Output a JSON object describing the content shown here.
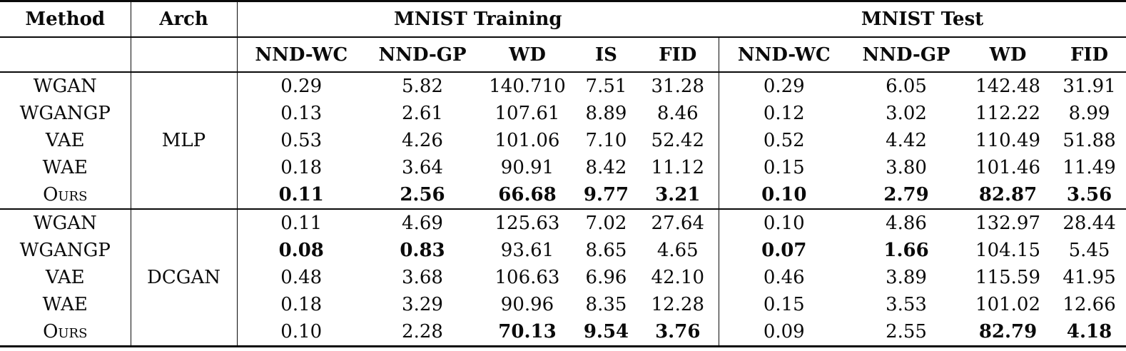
{
  "colors": {
    "background": "#ffffff",
    "text": "#0a0a0a",
    "rule": "#0a0a0a"
  },
  "table": {
    "header": {
      "method": "Method",
      "arch": "Arch",
      "training": "MNIST Training",
      "test": "MNIST Test"
    },
    "sub_training": [
      "NND-WC",
      "NND-GP",
      "WD",
      "IS",
      "FID"
    ],
    "sub_test": [
      "NND-WC",
      "NND-GP",
      "WD",
      "FID"
    ],
    "blocks": [
      {
        "arch": "MLP",
        "rows": [
          {
            "method": "WGAN",
            "sc": false,
            "values": [
              {
                "t": "0.29",
                "b": false
              },
              {
                "t": "5.82",
                "b": false
              },
              {
                "t": "140.710",
                "b": false
              },
              {
                "t": "7.51",
                "b": false
              },
              {
                "t": "31.28",
                "b": false
              },
              {
                "t": "0.29",
                "b": false
              },
              {
                "t": "6.05",
                "b": false
              },
              {
                "t": "142.48",
                "b": false
              },
              {
                "t": "31.91",
                "b": false
              }
            ]
          },
          {
            "method": "WGANGP",
            "sc": false,
            "values": [
              {
                "t": "0.13",
                "b": false
              },
              {
                "t": "2.61",
                "b": false
              },
              {
                "t": "107.61",
                "b": false
              },
              {
                "t": "8.89",
                "b": false
              },
              {
                "t": "8.46",
                "b": false
              },
              {
                "t": "0.12",
                "b": false
              },
              {
                "t": "3.02",
                "b": false
              },
              {
                "t": "112.22",
                "b": false
              },
              {
                "t": "8.99",
                "b": false
              }
            ]
          },
          {
            "method": "VAE",
            "sc": false,
            "values": [
              {
                "t": "0.53",
                "b": false
              },
              {
                "t": "4.26",
                "b": false
              },
              {
                "t": "101.06",
                "b": false
              },
              {
                "t": "7.10",
                "b": false
              },
              {
                "t": "52.42",
                "b": false
              },
              {
                "t": "0.52",
                "b": false
              },
              {
                "t": "4.42",
                "b": false
              },
              {
                "t": "110.49",
                "b": false
              },
              {
                "t": "51.88",
                "b": false
              }
            ]
          },
          {
            "method": "WAE",
            "sc": false,
            "values": [
              {
                "t": "0.18",
                "b": false
              },
              {
                "t": "3.64",
                "b": false
              },
              {
                "t": "90.91",
                "b": false
              },
              {
                "t": "8.42",
                "b": false
              },
              {
                "t": "11.12",
                "b": false
              },
              {
                "t": "0.15",
                "b": false
              },
              {
                "t": "3.80",
                "b": false
              },
              {
                "t": "101.46",
                "b": false
              },
              {
                "t": "11.49",
                "b": false
              }
            ]
          },
          {
            "method": "Ours",
            "sc": true,
            "values": [
              {
                "t": "0.11",
                "b": true
              },
              {
                "t": "2.56",
                "b": true
              },
              {
                "t": "66.68",
                "b": true
              },
              {
                "t": "9.77",
                "b": true
              },
              {
                "t": "3.21",
                "b": true
              },
              {
                "t": "0.10",
                "b": true
              },
              {
                "t": "2.79",
                "b": true
              },
              {
                "t": "82.87",
                "b": true
              },
              {
                "t": "3.56",
                "b": true
              }
            ]
          }
        ]
      },
      {
        "arch": "DCGAN",
        "rows": [
          {
            "method": "WGAN",
            "sc": false,
            "values": [
              {
                "t": "0.11",
                "b": false
              },
              {
                "t": "4.69",
                "b": false
              },
              {
                "t": "125.63",
                "b": false
              },
              {
                "t": "7.02",
                "b": false
              },
              {
                "t": "27.64",
                "b": false
              },
              {
                "t": "0.10",
                "b": false
              },
              {
                "t": "4.86",
                "b": false
              },
              {
                "t": "132.97",
                "b": false
              },
              {
                "t": "28.44",
                "b": false
              }
            ]
          },
          {
            "method": "WGANGP",
            "sc": false,
            "values": [
              {
                "t": "0.08",
                "b": true
              },
              {
                "t": "0.83",
                "b": true
              },
              {
                "t": "93.61",
                "b": false
              },
              {
                "t": "8.65",
                "b": false
              },
              {
                "t": "4.65",
                "b": false
              },
              {
                "t": "0.07",
                "b": true
              },
              {
                "t": "1.66",
                "b": true
              },
              {
                "t": "104.15",
                "b": false
              },
              {
                "t": "5.45",
                "b": false
              }
            ]
          },
          {
            "method": "VAE",
            "sc": false,
            "values": [
              {
                "t": "0.48",
                "b": false
              },
              {
                "t": "3.68",
                "b": false
              },
              {
                "t": "106.63",
                "b": false
              },
              {
                "t": "6.96",
                "b": false
              },
              {
                "t": "42.10",
                "b": false
              },
              {
                "t": "0.46",
                "b": false
              },
              {
                "t": "3.89",
                "b": false
              },
              {
                "t": "115.59",
                "b": false
              },
              {
                "t": "41.95",
                "b": false
              }
            ]
          },
          {
            "method": "WAE",
            "sc": false,
            "values": [
              {
                "t": "0.18",
                "b": false
              },
              {
                "t": "3.29",
                "b": false
              },
              {
                "t": "90.96",
                "b": false
              },
              {
                "t": "8.35",
                "b": false
              },
              {
                "t": "12.28",
                "b": false
              },
              {
                "t": "0.15",
                "b": false
              },
              {
                "t": "3.53",
                "b": false
              },
              {
                "t": "101.02",
                "b": false
              },
              {
                "t": "12.66",
                "b": false
              }
            ]
          },
          {
            "method": "Ours",
            "sc": true,
            "values": [
              {
                "t": "0.10",
                "b": false
              },
              {
                "t": "2.28",
                "b": false
              },
              {
                "t": "70.13",
                "b": true
              },
              {
                "t": "9.54",
                "b": true
              },
              {
                "t": "3.76",
                "b": true
              },
              {
                "t": "0.09",
                "b": false
              },
              {
                "t": "2.55",
                "b": false
              },
              {
                "t": "82.79",
                "b": true
              },
              {
                "t": "4.18",
                "b": true
              }
            ]
          }
        ]
      }
    ]
  }
}
